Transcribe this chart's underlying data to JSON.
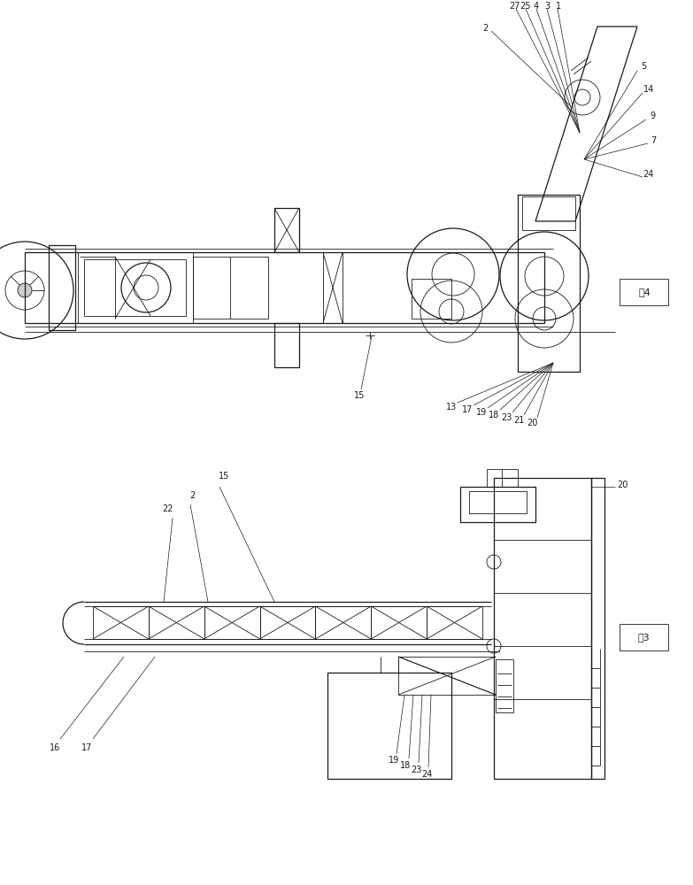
{
  "bg_color": "#ffffff",
  "line_color": "#1a1a1a",
  "fig4_label": "图4",
  "fig3_label": "图3",
  "lw_thin": 0.6,
  "lw_med": 0.9,
  "lw_thick": 1.2
}
